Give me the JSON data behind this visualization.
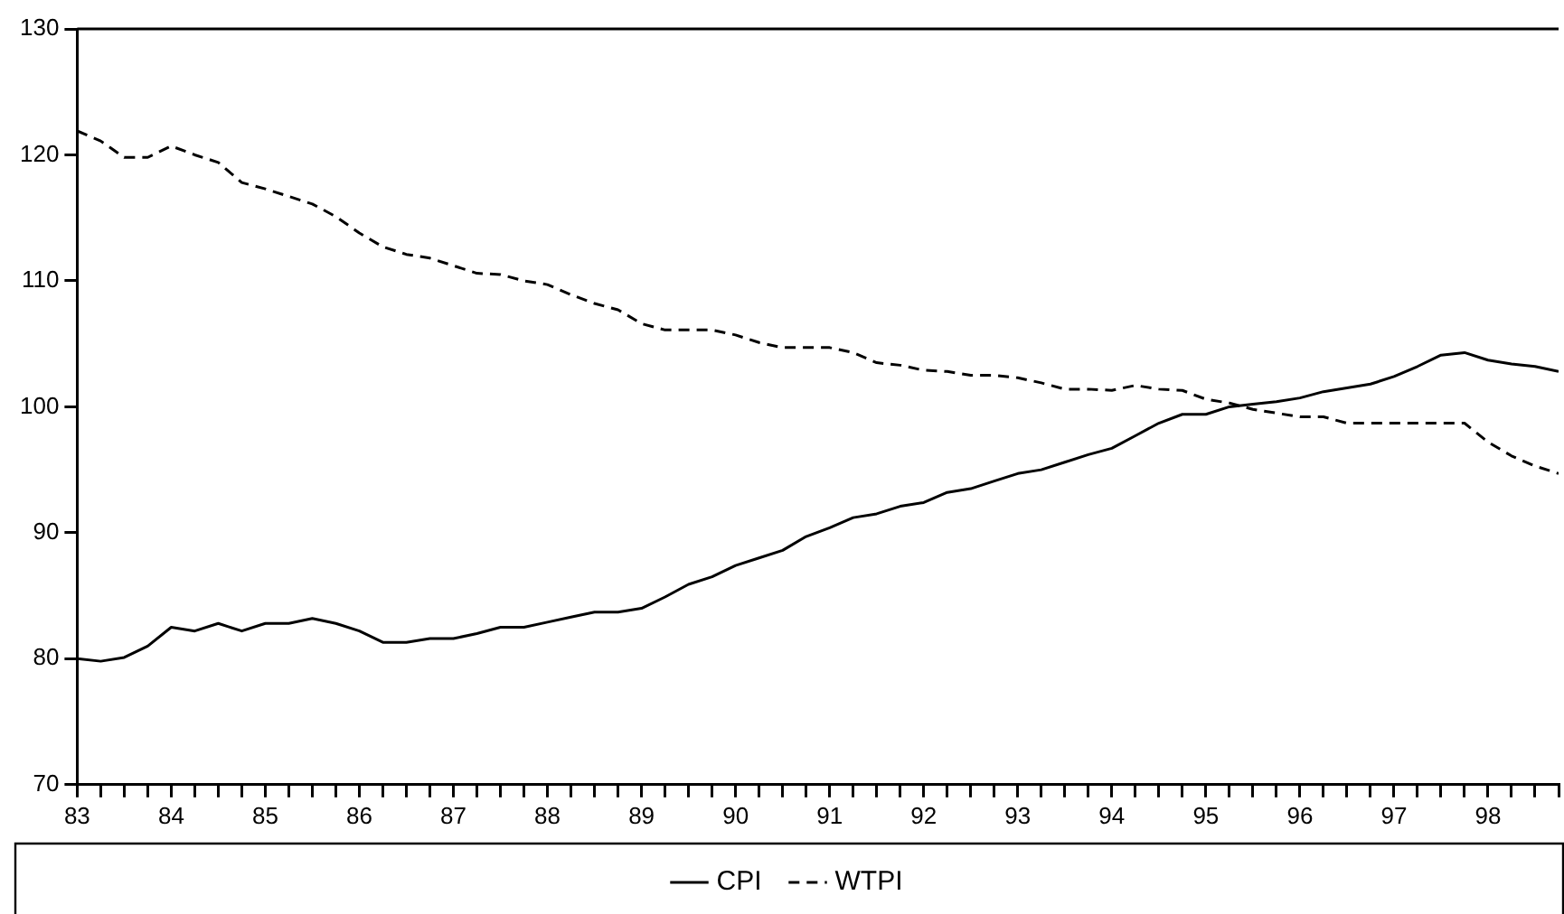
{
  "chart_data": {
    "type": "line",
    "x": [
      83,
      83.25,
      83.5,
      83.75,
      84,
      84.25,
      84.5,
      84.75,
      85,
      85.25,
      85.5,
      85.75,
      86,
      86.25,
      86.5,
      86.75,
      87,
      87.25,
      87.5,
      87.75,
      88,
      88.25,
      88.5,
      88.75,
      89,
      89.25,
      89.5,
      89.75,
      90,
      90.25,
      90.5,
      90.75,
      91,
      91.25,
      91.5,
      91.75,
      92,
      92.25,
      92.5,
      92.75,
      93,
      93.25,
      93.5,
      93.75,
      94,
      94.25,
      94.5,
      94.75,
      95,
      95.25,
      95.5,
      95.75,
      96,
      96.25,
      96.5,
      96.75,
      97,
      97.25,
      97.5,
      97.75,
      98,
      98.25,
      98.5,
      98.75
    ],
    "series": [
      {
        "name": "CPI",
        "color": "#000000",
        "line_style": "solid",
        "values": [
          80.0,
          79.8,
          80.1,
          81.0,
          82.5,
          82.2,
          82.8,
          82.2,
          82.8,
          82.8,
          83.2,
          82.8,
          82.2,
          81.3,
          81.3,
          81.6,
          81.6,
          82.0,
          82.5,
          82.5,
          82.9,
          83.3,
          83.7,
          83.7,
          84.0,
          84.9,
          85.9,
          86.5,
          87.4,
          88.0,
          88.6,
          89.7,
          90.4,
          91.2,
          91.5,
          92.1,
          92.4,
          93.2,
          93.5,
          94.1,
          94.7,
          95.0,
          95.6,
          96.2,
          96.7,
          97.7,
          98.7,
          99.4,
          99.4,
          100.0,
          100.2,
          100.4,
          100.7,
          101.2,
          101.5,
          101.8,
          102.4,
          103.2,
          104.1,
          104.3,
          103.7,
          103.4,
          103.2,
          102.8
        ]
      },
      {
        "name": "WTPI",
        "color": "#000000",
        "line_style": "dashed",
        "values": [
          121.9,
          121.1,
          119.8,
          119.8,
          120.7,
          120.0,
          119.4,
          117.8,
          117.3,
          116.7,
          116.1,
          115.1,
          113.8,
          112.7,
          112.1,
          111.8,
          111.2,
          110.6,
          110.5,
          110.0,
          109.7,
          108.9,
          108.2,
          107.7,
          106.6,
          106.1,
          106.1,
          106.1,
          105.7,
          105.1,
          104.7,
          104.7,
          104.7,
          104.3,
          103.5,
          103.3,
          102.9,
          102.8,
          102.5,
          102.5,
          102.3,
          101.9,
          101.4,
          101.4,
          101.3,
          101.7,
          101.4,
          101.3,
          100.6,
          100.3,
          99.8,
          99.5,
          99.2,
          99.2,
          98.7,
          98.7,
          98.7,
          98.7,
          98.7,
          98.7,
          97.2,
          96.1,
          95.3,
          94.7
        ]
      }
    ],
    "xlim": [
      83,
      98.75
    ],
    "xticks": [
      83,
      {
        "value": 83.25,
        "label": null
      },
      {
        "value": 83.5,
        "label": null
      },
      {
        "value": 83.75,
        "label": null
      },
      84,
      {
        "value": 84.25,
        "label": null
      },
      {
        "value": 84.5,
        "label": null
      },
      {
        "value": 84.75,
        "label": null
      },
      85,
      {
        "value": 85.25,
        "label": null
      },
      {
        "value": 85.5,
        "label": null
      },
      {
        "value": 85.75,
        "label": null
      },
      86,
      {
        "value": 86.25,
        "label": null
      },
      {
        "value": 86.5,
        "label": null
      },
      {
        "value": 86.75,
        "label": null
      },
      87,
      {
        "value": 87.25,
        "label": null
      },
      {
        "value": 87.5,
        "label": null
      },
      {
        "value": 87.75,
        "label": null
      },
      88,
      {
        "value": 88.25,
        "label": null
      },
      {
        "value": 88.5,
        "label": null
      },
      {
        "value": 88.75,
        "label": null
      },
      89,
      {
        "value": 89.25,
        "label": null
      },
      {
        "value": 89.5,
        "label": null
      },
      {
        "value": 89.75,
        "label": null
      },
      90,
      {
        "value": 90.25,
        "label": null
      },
      {
        "value": 90.5,
        "label": null
      },
      {
        "value": 90.75,
        "label": null
      },
      91,
      {
        "value": 91.25,
        "label": null
      },
      {
        "value": 91.5,
        "label": null
      },
      {
        "value": 91.75,
        "label": null
      },
      92,
      {
        "value": 92.25,
        "label": null
      },
      {
        "value": 92.5,
        "label": null
      },
      {
        "value": 92.75,
        "label": null
      },
      93,
      {
        "value": 93.25,
        "label": null
      },
      {
        "value": 93.5,
        "label": null
      },
      {
        "value": 93.75,
        "label": null
      },
      94,
      {
        "value": 94.25,
        "label": null
      },
      {
        "value": 94.5,
        "label": null
      },
      {
        "value": 94.75,
        "label": null
      },
      95,
      {
        "value": 95.25,
        "label": null
      },
      {
        "value": 95.5,
        "label": null
      },
      {
        "value": 95.75,
        "label": null
      },
      96,
      {
        "value": 96.25,
        "label": null
      },
      {
        "value": 96.5,
        "label": null
      },
      {
        "value": 96.75,
        "label": null
      },
      97,
      {
        "value": 97.25,
        "label": null
      },
      {
        "value": 97.5,
        "label": null
      },
      {
        "value": 97.75,
        "label": null
      },
      98,
      {
        "value": 98.25,
        "label": null
      },
      {
        "value": 98.5,
        "label": null
      },
      {
        "value": 98.75,
        "label": null
      }
    ],
    "ylim": [
      70,
      130
    ],
    "yticks": [
      70,
      80,
      90,
      100,
      110,
      120,
      130
    ],
    "legend": "bottom"
  }
}
